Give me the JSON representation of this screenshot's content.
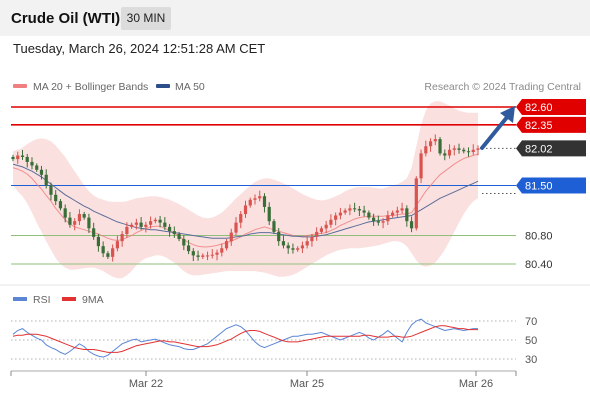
{
  "header": {
    "title": "Crude Oil (WTI)",
    "timeframe": "30 MIN"
  },
  "timestamp": "Tuesday, March 26, 2024 12:51:28 AM CET",
  "legend": [
    {
      "label": "MA 20 + Bollinger Bands",
      "color": "#f08080"
    },
    {
      "label": "MA 50",
      "color": "#2c4f8c"
    }
  ],
  "credit": "Research © 2024 Trading Central",
  "colors": {
    "resistance": "#e00000",
    "pivot": "#1f5fd6",
    "support": "#8fbf7a",
    "current": "#333333",
    "candle_up": "#d9534f",
    "candle_down": "#3a6e38",
    "bands": "#f7c6c6",
    "ma50": "#5a6e9a",
    "rsi": "#5b86d6",
    "rsi_ma": "#e23232"
  },
  "chart_data": [
    {
      "type": "candlestick",
      "title": "Crude Oil (WTI)",
      "timeframe": "30 MIN",
      "ylim": [
        80.25,
        82.7
      ],
      "x_ticks": [
        "Mar 22",
        "Mar 25",
        "Mar 26"
      ],
      "levels": [
        {
          "label": "82.60",
          "value": 82.6,
          "kind": "resistance"
        },
        {
          "label": "82.35",
          "value": 82.35,
          "kind": "resistance"
        },
        {
          "label": "82.02",
          "value": 82.02,
          "kind": "current"
        },
        {
          "label": "81.50",
          "value": 81.5,
          "kind": "pivot"
        },
        {
          "label": "80.80",
          "value": 80.8,
          "kind": "support"
        },
        {
          "label": "80.40",
          "value": 80.4,
          "kind": "support"
        }
      ],
      "close_series": [
        81.87,
        81.92,
        81.9,
        81.83,
        81.78,
        81.72,
        81.65,
        81.5,
        81.37,
        81.28,
        81.18,
        81.05,
        80.95,
        81.0,
        81.1,
        81.05,
        80.9,
        80.78,
        80.65,
        80.55,
        80.5,
        80.62,
        80.72,
        80.82,
        80.92,
        80.95,
        80.98,
        80.92,
        80.95,
        81.0,
        81.02,
        80.98,
        80.92,
        80.86,
        80.82,
        80.75,
        80.66,
        80.58,
        80.52,
        80.5,
        80.52,
        80.52,
        80.53,
        80.56,
        80.62,
        80.72,
        80.84,
        80.98,
        81.1,
        81.22,
        81.3,
        81.32,
        81.35,
        81.2,
        81.0,
        80.85,
        80.72,
        80.66,
        80.62,
        80.6,
        80.62,
        80.66,
        80.72,
        80.78,
        80.85,
        80.9,
        80.95,
        81.02,
        81.08,
        81.12,
        81.15,
        81.18,
        81.17,
        81.15,
        81.12,
        81.05,
        81.0,
        80.98,
        81.0,
        81.08,
        81.12,
        81.15,
        81.18,
        81.0,
        80.9,
        81.6,
        81.95,
        82.05,
        82.12,
        82.15,
        81.95,
        81.92,
        82.0,
        82.02,
        82.0,
        81.98,
        81.97,
        82.0,
        82.02
      ],
      "ma20": [
        81.75,
        81.73,
        81.7,
        81.66,
        81.6,
        81.52,
        81.45,
        81.36,
        81.28,
        81.18,
        81.1,
        81.02,
        80.96,
        80.92,
        80.9,
        80.88,
        80.86,
        80.84,
        80.82,
        80.79,
        80.76,
        80.74,
        80.73,
        80.74,
        80.77,
        80.8,
        80.84,
        80.87,
        80.9,
        80.92,
        80.93,
        80.93,
        80.9,
        80.87,
        80.83,
        80.79,
        80.74,
        80.7,
        80.67,
        80.65,
        80.64,
        80.64,
        80.65,
        80.66,
        80.68,
        80.7,
        80.72,
        80.75,
        80.78,
        80.82,
        80.85,
        80.88,
        80.9,
        80.92,
        80.9,
        80.88,
        80.86,
        80.84,
        80.82,
        80.8,
        80.79,
        80.79,
        80.8,
        80.81,
        80.82,
        80.83,
        80.84,
        80.87,
        80.9,
        80.94,
        80.97,
        81.0,
        81.03,
        81.05,
        81.06,
        81.07,
        81.07,
        81.07,
        81.07,
        81.08,
        81.08,
        81.09,
        81.1,
        81.1,
        81.12,
        81.22,
        81.32,
        81.42,
        81.5,
        81.58,
        81.65,
        81.7,
        81.75,
        81.8,
        81.84,
        81.88,
        81.9,
        81.92,
        81.94
      ],
      "ma50": [
        81.8,
        81.78,
        81.76,
        81.73,
        81.7,
        81.66,
        81.62,
        81.57,
        81.52,
        81.47,
        81.42,
        81.37,
        81.33,
        81.29,
        81.25,
        81.21,
        81.18,
        81.14,
        81.11,
        81.08,
        81.05,
        81.02,
        80.99,
        80.97,
        80.95,
        80.93,
        80.91,
        80.9,
        80.89,
        80.88,
        80.88,
        80.87,
        80.86,
        80.85,
        80.84,
        80.83,
        80.82,
        80.81,
        80.8,
        80.79,
        80.78,
        80.77,
        80.76,
        80.76,
        80.76,
        80.76,
        80.77,
        80.78,
        80.79,
        80.8,
        80.82,
        80.83,
        80.84,
        80.84,
        80.84,
        80.83,
        80.82,
        80.81,
        80.8,
        80.79,
        80.79,
        80.78,
        80.78,
        80.78,
        80.79,
        80.8,
        80.81,
        80.83,
        80.85,
        80.87,
        80.89,
        80.91,
        80.93,
        80.95,
        80.97,
        80.99,
        81.0,
        81.01,
        81.02,
        81.03,
        81.04,
        81.05,
        81.06,
        81.07,
        81.08,
        81.12,
        81.16,
        81.2,
        81.24,
        81.28,
        81.32,
        81.35,
        81.38,
        81.41,
        81.44,
        81.47,
        81.5,
        81.53,
        81.56
      ],
      "bb_upper": [
        81.98,
        82.0,
        82.03,
        82.08,
        82.12,
        82.15,
        82.16,
        82.15,
        82.12,
        82.06,
        81.98,
        81.9,
        81.8,
        81.7,
        81.6,
        81.5,
        81.42,
        81.36,
        81.32,
        81.3,
        81.28,
        81.27,
        81.27,
        81.27,
        81.28,
        81.3,
        81.32,
        81.33,
        81.34,
        81.35,
        81.35,
        81.34,
        81.32,
        81.3,
        81.27,
        81.24,
        81.2,
        81.16,
        81.12,
        81.08,
        81.05,
        81.04,
        81.05,
        81.08,
        81.12,
        81.18,
        81.25,
        81.32,
        81.38,
        81.44,
        81.5,
        81.55,
        81.58,
        81.6,
        81.6,
        81.58,
        81.56,
        81.53,
        81.5,
        81.46,
        81.42,
        81.38,
        81.35,
        81.32,
        81.3,
        81.29,
        81.3,
        81.32,
        81.35,
        81.38,
        81.42,
        81.45,
        81.47,
        81.48,
        81.48,
        81.48,
        81.47,
        81.46,
        81.46,
        81.48,
        81.5,
        81.52,
        81.55,
        81.6,
        81.75,
        82.05,
        82.35,
        82.55,
        82.65,
        82.68,
        82.68,
        82.65,
        82.62,
        82.58,
        82.55,
        82.53,
        82.52,
        82.52,
        82.52
      ],
      "bb_lower": [
        81.5,
        81.42,
        81.35,
        81.25,
        81.12,
        80.98,
        80.85,
        80.72,
        80.6,
        80.48,
        80.4,
        80.35,
        80.32,
        80.32,
        80.33,
        80.34,
        80.35,
        80.35,
        80.33,
        80.3,
        80.26,
        80.22,
        80.2,
        80.2,
        80.24,
        80.3,
        80.38,
        80.44,
        80.48,
        80.5,
        80.52,
        80.52,
        80.5,
        80.46,
        80.42,
        80.36,
        80.3,
        80.26,
        80.24,
        80.24,
        80.25,
        80.26,
        80.27,
        80.28,
        80.29,
        80.3,
        80.3,
        80.3,
        80.3,
        80.3,
        80.3,
        80.3,
        80.29,
        80.28,
        80.26,
        80.24,
        80.22,
        80.22,
        80.23,
        80.25,
        80.28,
        80.32,
        80.36,
        80.4,
        80.44,
        80.48,
        80.52,
        80.55,
        80.58,
        80.6,
        80.61,
        80.62,
        80.62,
        80.62,
        80.63,
        80.64,
        80.65,
        80.66,
        80.68,
        80.7,
        80.72,
        80.72,
        80.7,
        80.65,
        80.55,
        80.45,
        80.38,
        80.36,
        80.38,
        80.42,
        80.5,
        80.6,
        80.72,
        80.85,
        80.98,
        81.1,
        81.2,
        81.28,
        81.32
      ]
    },
    {
      "type": "line",
      "title": "RSI",
      "ylim": [
        20,
        80
      ],
      "y_ticks": [
        70,
        50,
        30
      ],
      "x_ticks": [
        "Mar 22",
        "Mar 25",
        "Mar 26"
      ],
      "series": [
        {
          "name": "RSI",
          "values": [
            56,
            60,
            62,
            58,
            55,
            52,
            50,
            45,
            42,
            40,
            37,
            35,
            38,
            42,
            46,
            43,
            38,
            35,
            33,
            32,
            34,
            38,
            42,
            46,
            48,
            50,
            51,
            48,
            49,
            50,
            51,
            49,
            47,
            45,
            44,
            43,
            41,
            40,
            40,
            42,
            44,
            46,
            50,
            54,
            58,
            62,
            64,
            66,
            64,
            60,
            54,
            48,
            44,
            42,
            44,
            46,
            48,
            50,
            52,
            54,
            54,
            55,
            56,
            56,
            57,
            58,
            56,
            54,
            52,
            50,
            52,
            54,
            56,
            58,
            56,
            52,
            50,
            53,
            56,
            60,
            56,
            52,
            48,
            58,
            66,
            70,
            72,
            68,
            66,
            64,
            62,
            60,
            61,
            62,
            61,
            60,
            61,
            62,
            62
          ]
        },
        {
          "name": "9MA",
          "values": [
            54,
            55,
            55,
            56,
            56,
            56,
            55,
            54,
            52,
            50,
            48,
            46,
            44,
            42,
            41,
            40,
            40,
            40,
            39,
            38,
            37,
            37,
            37,
            38,
            40,
            42,
            44,
            45,
            46,
            47,
            48,
            49,
            49,
            48,
            48,
            47,
            46,
            45,
            44,
            43,
            43,
            43,
            44,
            45,
            47,
            49,
            51,
            54,
            57,
            59,
            60,
            60,
            59,
            57,
            55,
            53,
            51,
            49,
            48,
            48,
            48,
            49,
            50,
            51,
            52,
            53,
            54,
            54,
            54,
            54,
            54,
            54,
            54,
            54,
            55,
            55,
            54,
            53,
            53,
            53,
            54,
            54,
            53,
            53,
            54,
            56,
            58,
            60,
            62,
            64,
            65,
            65,
            64,
            63,
            62,
            62,
            61,
            61,
            61
          ]
        }
      ]
    }
  ]
}
